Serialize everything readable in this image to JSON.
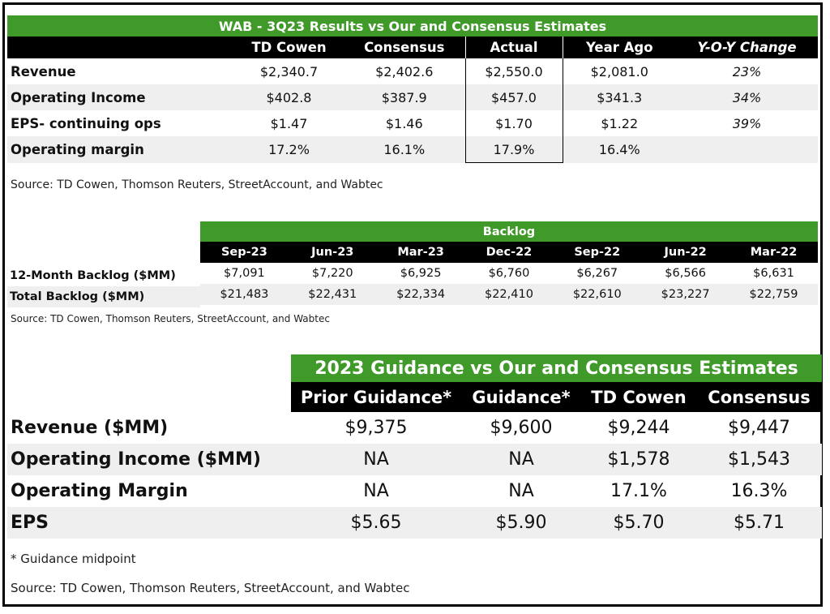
{
  "table1": {
    "title": "WAB - 3Q23 Results vs Our and Consensus Estimates",
    "headers": [
      "TD Cowen",
      "Consensus",
      "Actual",
      "Year Ago",
      "Y-O-Y Change"
    ],
    "rows": [
      {
        "label": "Revenue",
        "values": [
          "$2,340.7",
          "$2,402.6",
          "$2,550.0",
          "$2,081.0",
          "23%"
        ]
      },
      {
        "label": "Operating Income",
        "values": [
          "$402.8",
          "$387.9",
          "$457.0",
          "$341.3",
          "34%"
        ]
      },
      {
        "label": "EPS- continuing ops",
        "values": [
          "$1.47",
          "$1.46",
          "$1.70",
          "$1.22",
          "39%"
        ]
      },
      {
        "label": "Operating margin",
        "values": [
          "17.2%",
          "16.1%",
          "17.9%",
          "16.4%",
          ""
        ]
      }
    ],
    "source": "Source: TD Cowen, Thomson Reuters, StreetAccount, and Wabtec"
  },
  "table2": {
    "title": "Backlog",
    "headers": [
      "Sep-23",
      "Jun-23",
      "Mar-23",
      "Dec-22",
      "Sep-22",
      "Jun-22",
      "Mar-22"
    ],
    "rows": [
      {
        "label": "12-Month Backlog ($MM)",
        "values": [
          "$7,091",
          "$7,220",
          "$6,925",
          "$6,760",
          "$6,267",
          "$6,566",
          "$6,631"
        ]
      },
      {
        "label": "Total Backlog ($MM)",
        "values": [
          "$21,483",
          "$22,431",
          "$22,334",
          "$22,410",
          "$22,610",
          "$23,227",
          "$22,759"
        ]
      }
    ],
    "source": "Source: TD Cowen, Thomson Reuters, StreetAccount, and Wabtec"
  },
  "table3": {
    "title": "2023 Guidance vs Our and Consensus Estimates",
    "headers": [
      "Prior Guidance*",
      "Guidance*",
      "TD Cowen",
      "Consensus"
    ],
    "rows": [
      {
        "label": "Revenue ($MM)",
        "values": [
          "$9,375",
          "$9,600",
          "$9,244",
          "$9,447"
        ]
      },
      {
        "label": "Operating Income ($MM)",
        "values": [
          "NA",
          "NA",
          "$1,578",
          "$1,543"
        ]
      },
      {
        "label": "Operating Margin",
        "values": [
          "NA",
          "NA",
          "17.1%",
          "16.3%"
        ]
      },
      {
        "label": "EPS",
        "values": [
          "$5.65",
          "$5.90",
          "$5.70",
          "$5.71"
        ]
      }
    ],
    "footnote": "* Guidance midpoint",
    "source": "Source: TD Cowen, Thomson Reuters, StreetAccount, and Wabtec"
  },
  "colors": {
    "header_green": "#3f9a2a",
    "header_black": "#000000",
    "row_shade": "#efefef"
  }
}
